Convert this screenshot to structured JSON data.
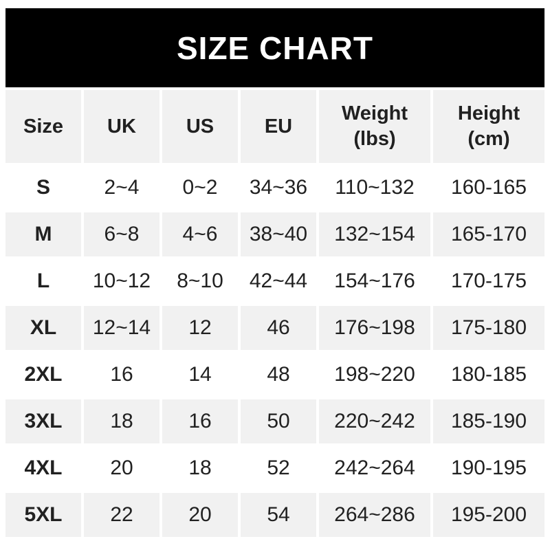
{
  "banner": {
    "title": "SIZE CHART"
  },
  "colors": {
    "banner_bg": "#000000",
    "banner_text": "#ffffff",
    "stripe_bg": "#f1f1f1",
    "row_bg": "#ffffff",
    "text": "#212121"
  },
  "chart_data": {
    "type": "table",
    "title": "SIZE CHART",
    "columns": [
      {
        "label": "Size"
      },
      {
        "label": "UK"
      },
      {
        "label": "US"
      },
      {
        "label": "EU"
      },
      {
        "label": "Weight",
        "sub": "(lbs)"
      },
      {
        "label": "Height",
        "sub": "(cm)"
      }
    ],
    "rows": [
      {
        "size": "S",
        "uk": "2~4",
        "us": "0~2",
        "eu": "34~36",
        "weight": "110~132",
        "height": "160-165"
      },
      {
        "size": "M",
        "uk": "6~8",
        "us": "4~6",
        "eu": "38~40",
        "weight": "132~154",
        "height": "165-170"
      },
      {
        "size": "L",
        "uk": "10~12",
        "us": "8~10",
        "eu": "42~44",
        "weight": "154~176",
        "height": "170-175"
      },
      {
        "size": "XL",
        "uk": "12~14",
        "us": "12",
        "eu": "46",
        "weight": "176~198",
        "height": "175-180"
      },
      {
        "size": "2XL",
        "uk": "16",
        "us": "14",
        "eu": "48",
        "weight": "198~220",
        "height": "180-185"
      },
      {
        "size": "3XL",
        "uk": "18",
        "us": "16",
        "eu": "50",
        "weight": "220~242",
        "height": "185-190"
      },
      {
        "size": "4XL",
        "uk": "20",
        "us": "18",
        "eu": "52",
        "weight": "242~264",
        "height": "190-195"
      },
      {
        "size": "5XL",
        "uk": "22",
        "us": "20",
        "eu": "54",
        "weight": "264~286",
        "height": "195-200"
      }
    ]
  }
}
